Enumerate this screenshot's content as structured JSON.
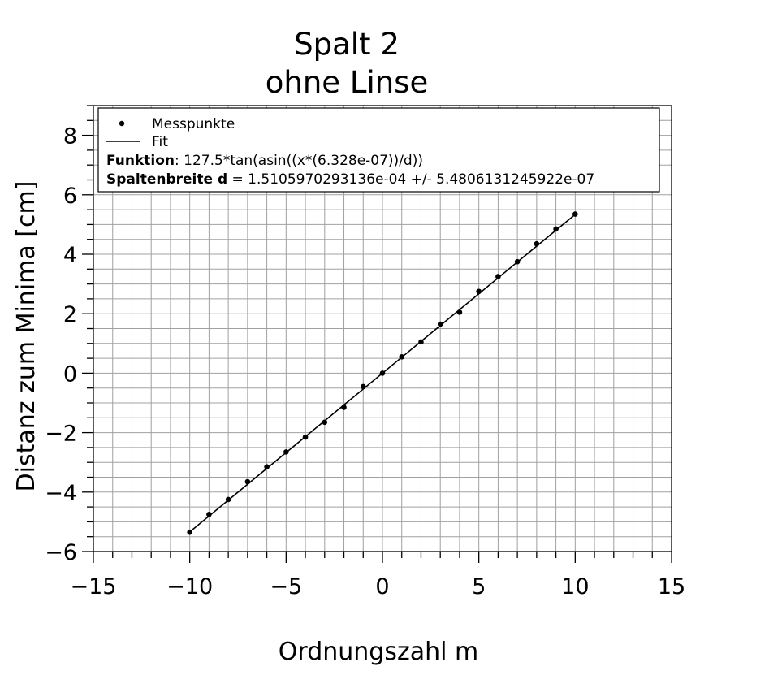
{
  "chart_data": {
    "type": "scatter",
    "title": [
      "Spalt 2",
      "ohne Linse"
    ],
    "xlabel": "Ordnungszahl m",
    "ylabel": "Distanz zum Minima [cm]",
    "xlim": [
      -15,
      15
    ],
    "ylim": [
      -6,
      9
    ],
    "x_ticks": [
      -15,
      -10,
      -5,
      0,
      5,
      10,
      15
    ],
    "x_tick_labels": [
      "−15",
      "−10",
      "−5",
      "0",
      "5",
      "10",
      "15"
    ],
    "y_ticks": [
      -6,
      -4,
      -2,
      0,
      2,
      4,
      6,
      8
    ],
    "y_tick_labels": [
      "−6",
      "−4",
      "−2",
      "0",
      "2",
      "4",
      "6",
      "8"
    ],
    "grid": true,
    "legend_position": "top",
    "series": [
      {
        "name": "Messpunkte",
        "kind": "points",
        "x": [
          -10,
          -9,
          -8,
          -7,
          -6,
          -5,
          -4,
          -3,
          -2,
          -1,
          0,
          1,
          2,
          3,
          4,
          5,
          6,
          7,
          8,
          9,
          10
        ],
        "y": [
          -5.35,
          -4.75,
          -4.25,
          -3.65,
          -3.15,
          -2.65,
          -2.15,
          -1.65,
          -1.15,
          -0.45,
          0.0,
          0.55,
          1.05,
          1.65,
          2.05,
          2.75,
          3.25,
          3.75,
          4.35,
          4.85,
          5.35
        ]
      },
      {
        "name": "Fit",
        "kind": "line",
        "x": [
          -10,
          10
        ],
        "y": [
          -5.34,
          5.34
        ]
      }
    ],
    "legend": {
      "function_label": "Funktion",
      "function_text": ": 127.5*tan(asin((x*(6.328e-07))/d))",
      "width_label": "Spaltenbreite d",
      "width_text": " = 1.5105970293136e-04 +/- 5.4806131245922e-07"
    }
  }
}
